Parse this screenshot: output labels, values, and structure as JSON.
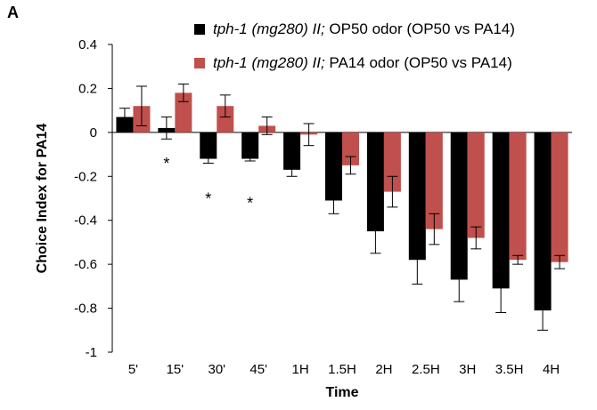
{
  "panel_label": "A",
  "legend": [
    {
      "italic": "tph-1 (mg280) II;",
      "rest": " OP50 odor (OP50 vs PA14)",
      "color": "#000000"
    },
    {
      "italic": "tph-1 (mg280) II;",
      "rest": " PA14 odor (OP50 vs PA14)",
      "color": "#c0504d"
    }
  ],
  "chart_data": {
    "type": "bar",
    "title": "",
    "xlabel": "Time",
    "ylabel": "Choice Index for PA14",
    "ylim": [
      -1,
      0.4
    ],
    "yticks": [
      0.4,
      0.2,
      0,
      -0.2,
      -0.4,
      -0.6,
      -0.8,
      -1
    ],
    "ytick_labels": [
      "0.4",
      "0.2",
      "0",
      "-0.2",
      "-0.4",
      "-0.6",
      "-0.8",
      "-1"
    ],
    "categories": [
      "5'",
      "15'",
      "30'",
      "45'",
      "1H",
      "1.5H",
      "2H",
      "2.5H",
      "3H",
      "3.5H",
      "4H"
    ],
    "series": [
      {
        "color": "#000000",
        "values": [
          0.07,
          0.02,
          -0.12,
          -0.12,
          -0.17,
          -0.31,
          -0.45,
          -0.58,
          -0.67,
          -0.71,
          -0.81
        ],
        "errors": [
          0.04,
          0.05,
          0.02,
          0.01,
          0.03,
          0.06,
          0.1,
          0.11,
          0.1,
          0.11,
          0.09
        ]
      },
      {
        "color": "#c0504d",
        "values": [
          0.12,
          0.18,
          0.12,
          0.03,
          -0.01,
          -0.15,
          -0.27,
          -0.44,
          -0.48,
          -0.58,
          -0.59
        ],
        "errors": [
          0.09,
          0.04,
          0.05,
          0.04,
          0.05,
          0.04,
          0.07,
          0.07,
          0.05,
          0.02,
          0.03
        ]
      }
    ],
    "annotations": [
      {
        "category": "15'",
        "text": "*",
        "y": -0.13
      },
      {
        "category": "30'",
        "text": "*",
        "y": -0.29
      },
      {
        "category": "45'",
        "text": "*",
        "y": -0.31
      }
    ],
    "grid": false,
    "legend_position": "top-right"
  }
}
